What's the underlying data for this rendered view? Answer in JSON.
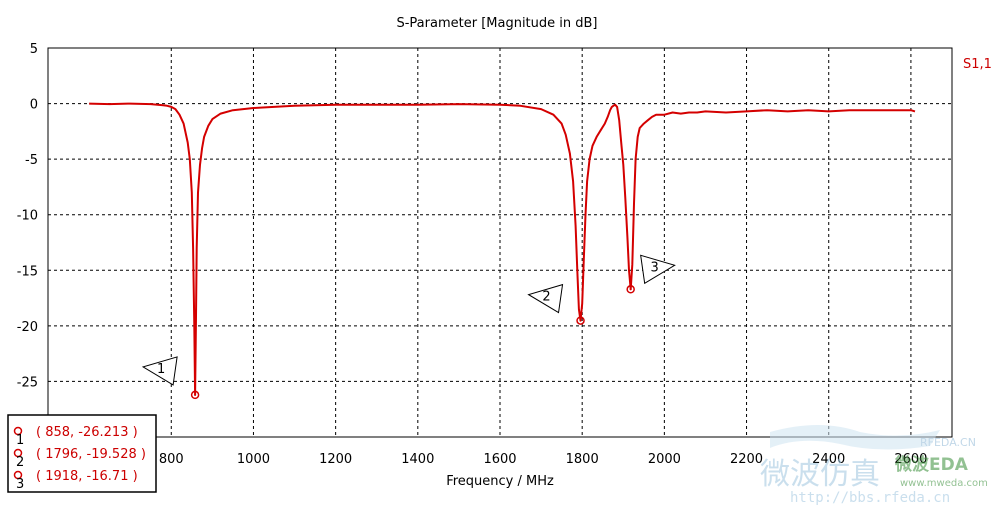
{
  "chart_data": {
    "type": "line",
    "title": "S-Parameter [Magnitude in dB]",
    "xlabel": "Frequency / MHz",
    "ylabel": "",
    "xlim": [
      500,
      2700
    ],
    "ylim": [
      -30,
      5
    ],
    "x_ticks": [
      800,
      1000,
      1200,
      1400,
      1600,
      1800,
      2000,
      2200,
      2400,
      2600
    ],
    "y_ticks": [
      5,
      0,
      -5,
      -10,
      -15,
      -20,
      -25
    ],
    "grid": true,
    "legend_position": "right",
    "series": [
      {
        "name": "S1,1",
        "color": "#d40000",
        "x": [
          600,
          650,
          700,
          750,
          780,
          790,
          800,
          810,
          820,
          830,
          840,
          845,
          850,
          853,
          856,
          858,
          860,
          862,
          865,
          870,
          875,
          880,
          890,
          900,
          920,
          950,
          1000,
          1050,
          1100,
          1200,
          1300,
          1400,
          1500,
          1600,
          1650,
          1700,
          1730,
          1750,
          1760,
          1770,
          1778,
          1784,
          1788,
          1792,
          1796,
          1800,
          1804,
          1808,
          1812,
          1818,
          1825,
          1835,
          1845,
          1855,
          1862,
          1868,
          1872,
          1876,
          1880,
          1885,
          1890,
          1895,
          1900,
          1905,
          1910,
          1914,
          1918,
          1922,
          1926,
          1930,
          1935,
          1940,
          1950,
          1960,
          1970,
          1980,
          2000,
          2020,
          2040,
          2060,
          2080,
          2100,
          2150,
          2200,
          2250,
          2300,
          2350,
          2400,
          2450,
          2500,
          2550,
          2600,
          2610
        ],
        "y": [
          0,
          -0.05,
          0,
          -0.05,
          -0.15,
          -0.2,
          -0.3,
          -0.5,
          -1.0,
          -1.8,
          -3.5,
          -5.0,
          -8.0,
          -13.0,
          -20.0,
          -26.213,
          -20.0,
          -13.0,
          -8.0,
          -5.5,
          -4.0,
          -3.0,
          -2.0,
          -1.4,
          -0.9,
          -0.6,
          -0.4,
          -0.3,
          -0.2,
          -0.1,
          -0.1,
          -0.1,
          -0.05,
          -0.1,
          -0.2,
          -0.5,
          -1.0,
          -1.8,
          -2.8,
          -4.5,
          -7.0,
          -11.0,
          -15.0,
          -18.5,
          -19.528,
          -18.0,
          -14.0,
          -10.0,
          -7.0,
          -5.0,
          -3.8,
          -3.0,
          -2.4,
          -1.8,
          -1.2,
          -0.6,
          -0.3,
          -0.2,
          -0.1,
          -0.3,
          -1.5,
          -3.5,
          -5.5,
          -8.5,
          -12.0,
          -15.0,
          -16.71,
          -14.5,
          -9.0,
          -5.0,
          -3.0,
          -2.2,
          -1.8,
          -1.5,
          -1.2,
          -1.0,
          -1.0,
          -0.8,
          -0.9,
          -0.8,
          -0.8,
          -0.7,
          -0.8,
          -0.7,
          -0.6,
          -0.7,
          -0.6,
          -0.7,
          -0.6,
          -0.6,
          -0.6,
          -0.6,
          -0.7
        ]
      }
    ],
    "markers": [
      {
        "id": "1",
        "x": 858,
        "y": -26.213,
        "text": "( 858, -26.213 )"
      },
      {
        "id": "2",
        "x": 1796,
        "y": -19.528,
        "text": "( 1796, -19.528 )"
      },
      {
        "id": "3",
        "x": 1918,
        "y": -16.71,
        "text": "( 1918, -16.71 )"
      }
    ]
  },
  "watermark": {
    "site_a": "RFEDA.CN",
    "site_b": "www.mweda.com",
    "site_c": "http://bbs.rfeda.cn",
    "logo_text": "微波EDA",
    "chinese": "微波仿真"
  }
}
